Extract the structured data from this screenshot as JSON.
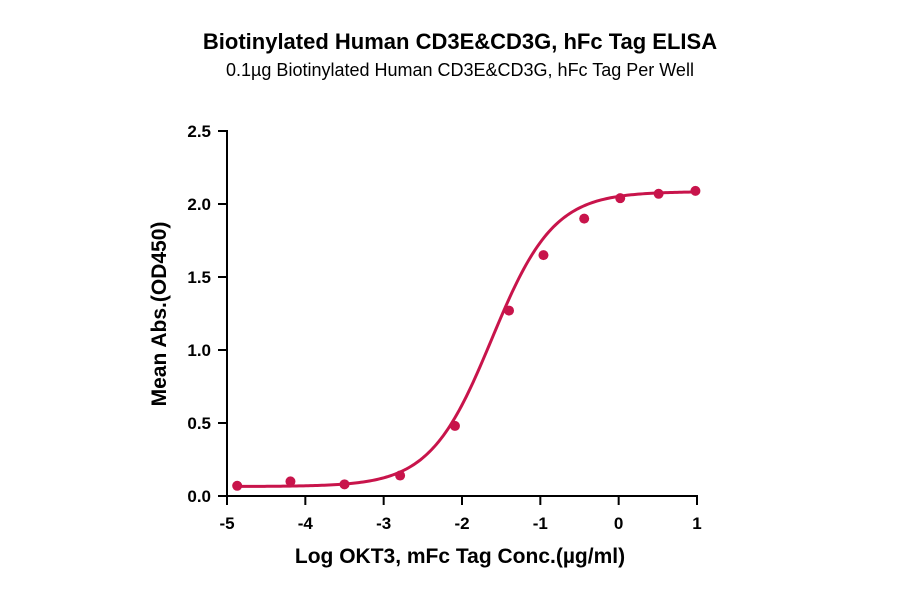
{
  "chart_data": {
    "type": "scatter",
    "title": "Biotinylated Human CD3E&CD3G, hFc Tag ELISA",
    "subtitle": "0.1µg Biotinylated Human CD3E&CD3G, hFc Tag Per Well",
    "xlabel": "Log OKT3, mFc Tag Conc.(µg/ml)",
    "ylabel": "Mean Abs.(OD450)",
    "xlim": [
      -5,
      1
    ],
    "ylim": [
      0,
      2.5
    ],
    "x_ticks": [
      -5,
      -4,
      -3,
      -2,
      -1,
      0,
      1
    ],
    "y_ticks": [
      0,
      0.5,
      1,
      1.5,
      2,
      2.5
    ],
    "x_tick_labels": [
      "-5",
      "-4",
      "-3",
      "-2",
      "-1",
      "0",
      "1"
    ],
    "y_tick_labels": [
      "0.0",
      "0.5",
      "1.0",
      "1.5",
      "2.0",
      "2.5"
    ],
    "grid": false,
    "color": "#c8144b",
    "series": [
      {
        "x": [
          -4.87,
          -4.19,
          -3.5,
          -2.79,
          -2.09,
          -1.4,
          -0.96,
          -0.44,
          0.02,
          0.51,
          0.98
        ],
        "y": [
          0.07,
          0.1,
          0.08,
          0.14,
          0.48,
          1.27,
          1.65,
          1.9,
          2.04,
          2.07,
          2.09
        ]
      }
    ],
    "fit_curve": {
      "model": "4PL",
      "bottom": 0.065,
      "top": 2.085,
      "logEC50": -1.62,
      "hill": 1.1
    }
  }
}
